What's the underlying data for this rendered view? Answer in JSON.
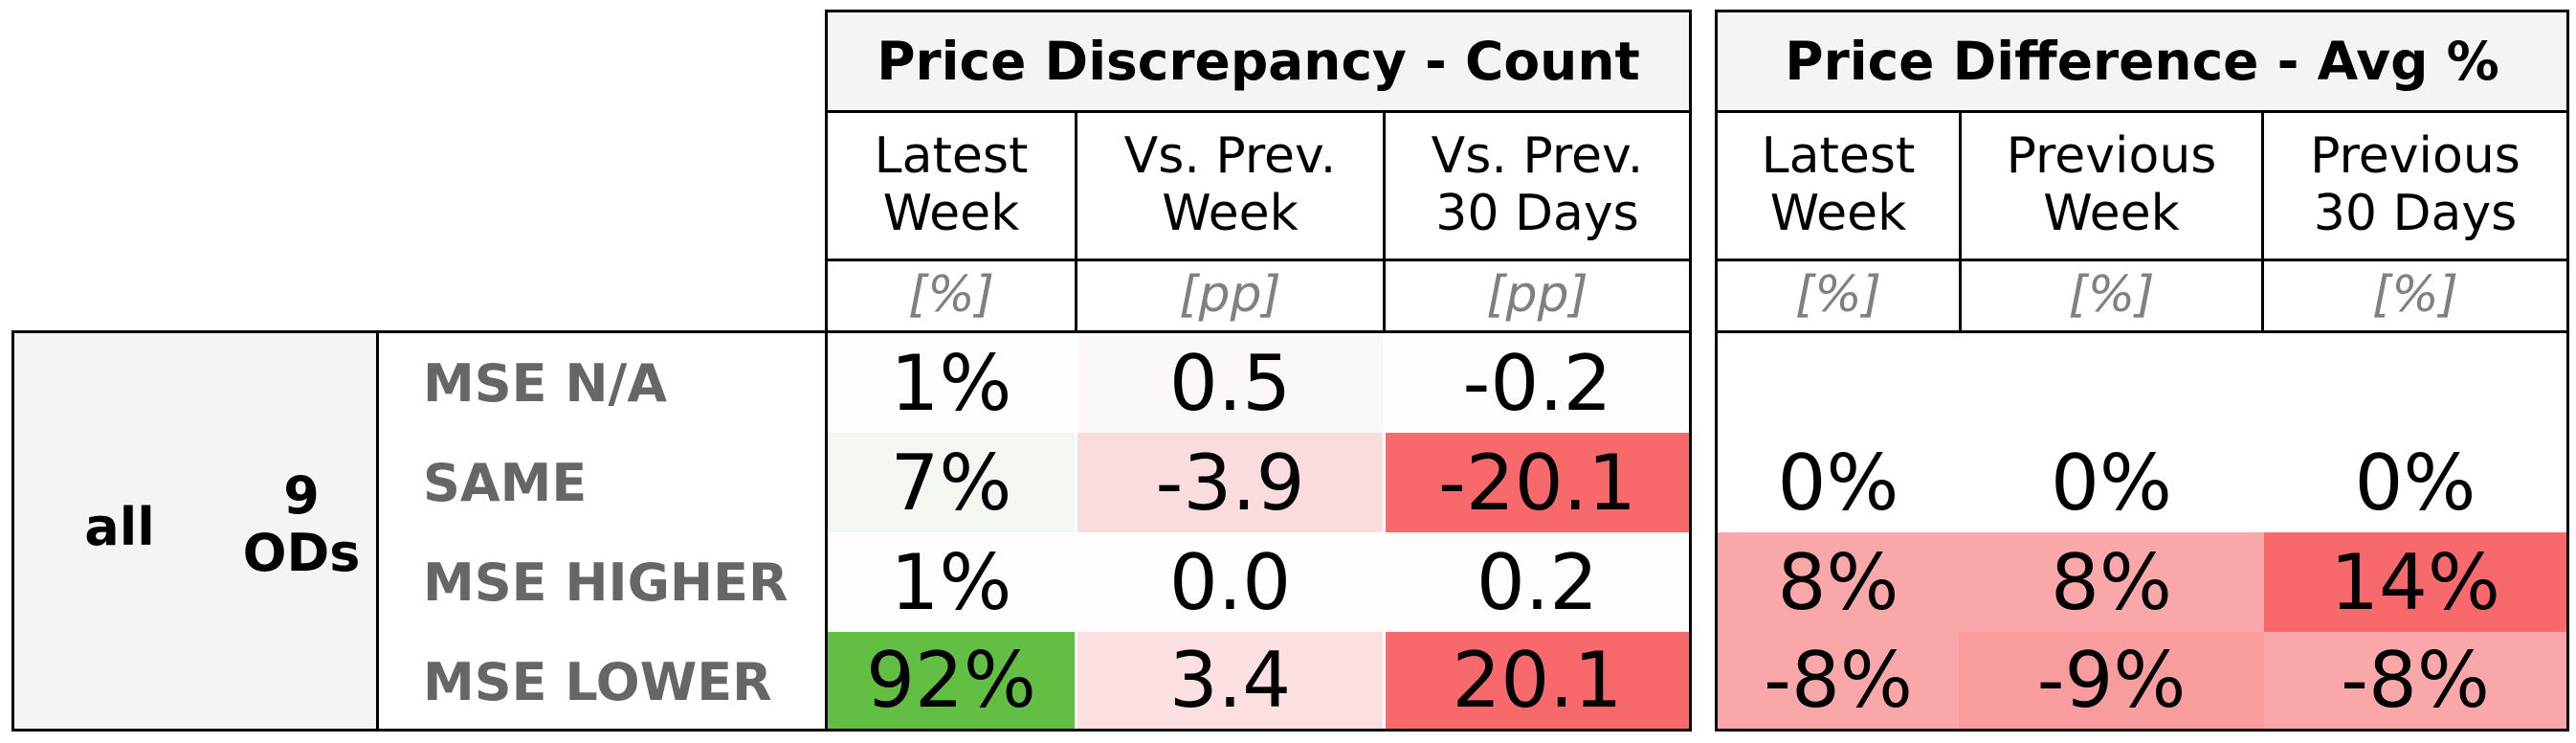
{
  "groups": {
    "count": {
      "title": "Price Discrepancy - Count"
    },
    "avg": {
      "title": "Price Difference - Avg %"
    }
  },
  "count_columns": [
    {
      "label": "Latest\nWeek",
      "unit": "[%]"
    },
    {
      "label": "Vs. Prev.\nWeek",
      "unit": "[pp]"
    },
    {
      "label": "Vs. Prev.\n30 Days",
      "unit": "[pp]"
    }
  ],
  "avg_columns": [
    {
      "label": "Latest\nWeek",
      "unit": "[%]"
    },
    {
      "label": "Previous\nWeek",
      "unit": "[%]"
    },
    {
      "label": "Previous\n30 Days",
      "unit": "[%]"
    }
  ],
  "stub": {
    "scope": "all",
    "od_count": "9",
    "od_unit": "ODs"
  },
  "rows": [
    {
      "label": "MSE N/A",
      "count": [
        {
          "v": "1%",
          "bg": "#fdfdfc"
        },
        {
          "v": "0.5",
          "bg": "#fdf8f8"
        },
        {
          "v": "-0.2",
          "bg": "#fefcfc"
        }
      ],
      "avg": [
        {
          "v": "",
          "bg": "#ffffff"
        },
        {
          "v": "",
          "bg": "#ffffff"
        },
        {
          "v": "",
          "bg": "#ffffff"
        }
      ]
    },
    {
      "label": "SAME",
      "count": [
        {
          "v": "7%",
          "bg": "#f2f7ef"
        },
        {
          "v": "-3.9",
          "bg": "#fbdcde"
        },
        {
          "v": "-20.1",
          "bg": "#f8696b"
        }
      ],
      "avg": [
        {
          "v": "0%",
          "bg": "#ffffff"
        },
        {
          "v": "0%",
          "bg": "#ffffff"
        },
        {
          "v": "0%",
          "bg": "#ffffff"
        }
      ]
    },
    {
      "label": "MSE HIGHER",
      "count": [
        {
          "v": "1%",
          "bg": "#fdfdfc"
        },
        {
          "v": "0.0",
          "bg": "#fefefe"
        },
        {
          "v": "0.2",
          "bg": "#fefcfc"
        }
      ],
      "avg": [
        {
          "v": "8%",
          "bg": "#f9a7a8"
        },
        {
          "v": "8%",
          "bg": "#f9a7a8"
        },
        {
          "v": "14%",
          "bg": "#f8696b"
        }
      ]
    },
    {
      "label": "MSE LOWER",
      "count": [
        {
          "v": "92%",
          "bg": "#63be44"
        },
        {
          "v": "3.4",
          "bg": "#fce0e1"
        },
        {
          "v": "20.1",
          "bg": "#f8696b"
        }
      ],
      "avg": [
        {
          "v": "-8%",
          "bg": "#f9a7a8"
        },
        {
          "v": "-9%",
          "bg": "#f89c9e"
        },
        {
          "v": "-8%",
          "bg": "#f9a7a8"
        }
      ]
    }
  ]
}
